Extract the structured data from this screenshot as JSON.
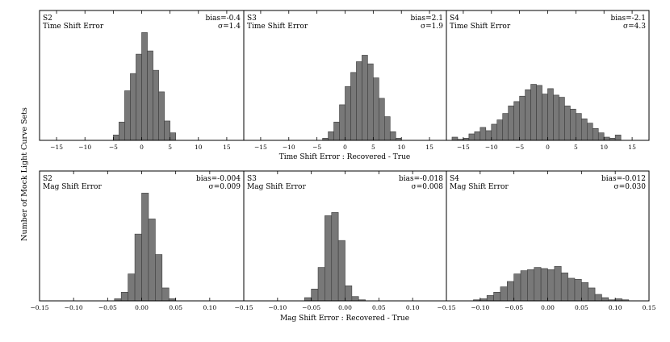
{
  "figure": {
    "ylabel": "Number of Mock Light Curve Sets",
    "row_xlabels": [
      "Time Shift Error : Recovered - True",
      "Mag Shift Error : Recovered - True"
    ]
  },
  "chart_data": [
    {
      "type": "bar",
      "row": 0,
      "col": 0,
      "sample": "S2",
      "quantity": "Time Shift Error",
      "bias": "bias=-0.4",
      "sigma": "σ=1.4",
      "xlim": [
        -18,
        18
      ],
      "xticks": [
        -15,
        -10,
        -5,
        0,
        5,
        10,
        15
      ],
      "xtick_labels": [
        "−15",
        "−10",
        "−5",
        "0",
        "5",
        "10",
        "15"
      ],
      "bin_width": 1,
      "bin_start": -5,
      "counts": [
        0.05,
        0.17,
        0.46,
        0.62,
        0.8,
        1.0,
        0.83,
        0.65,
        0.45,
        0.18,
        0.07
      ]
    },
    {
      "type": "bar",
      "row": 0,
      "col": 1,
      "sample": "S3",
      "quantity": "Time Shift Error",
      "bias": "bias=2.1",
      "sigma": "σ=1.9",
      "xlim": [
        -18,
        18
      ],
      "xticks": [
        -15,
        -10,
        -5,
        0,
        5,
        10,
        15
      ],
      "xtick_labels": [
        "−15",
        "−10",
        "−5",
        "0",
        "5",
        "10",
        "15"
      ],
      "bin_width": 1,
      "bin_start": -4,
      "counts": [
        0.02,
        0.08,
        0.17,
        0.33,
        0.5,
        0.63,
        0.73,
        0.79,
        0.71,
        0.58,
        0.39,
        0.22,
        0.08,
        0.02
      ]
    },
    {
      "type": "bar",
      "row": 0,
      "col": 2,
      "sample": "S4",
      "quantity": "Time Shift Error",
      "bias": "bias=-2.1",
      "sigma": "σ=4.3",
      "xlim": [
        -18,
        18
      ],
      "xticks": [
        -15,
        -10,
        -5,
        0,
        5,
        10,
        15
      ],
      "xtick_labels": [
        "−15",
        "−10",
        "−5",
        "0",
        "5",
        "10",
        "15"
      ],
      "bin_width": 1,
      "bin_start": -17,
      "counts": [
        0.03,
        0.01,
        0.02,
        0.06,
        0.08,
        0.12,
        0.09,
        0.15,
        0.19,
        0.25,
        0.32,
        0.36,
        0.41,
        0.47,
        0.52,
        0.51,
        0.43,
        0.48,
        0.42,
        0.4,
        0.32,
        0.29,
        0.25,
        0.2,
        0.16,
        0.11,
        0.07,
        0.03,
        0.02,
        0.05
      ]
    },
    {
      "type": "bar",
      "row": 1,
      "col": 0,
      "sample": "S2",
      "quantity": "Mag Shift Error",
      "bias": "bias=-0.004",
      "sigma": "σ=0.009",
      "xlim": [
        -0.15,
        0.15
      ],
      "xticks": [
        -0.15,
        -0.1,
        -0.05,
        0.0,
        0.05,
        0.1
      ],
      "xtick_labels": [
        "−0.15",
        "−0.10",
        "−0.05",
        "0.00",
        "0.05",
        "0.10"
      ],
      "bin_width": 0.01,
      "bin_start": -0.04,
      "counts": [
        0.02,
        0.08,
        0.25,
        0.62,
        1.0,
        0.76,
        0.43,
        0.12,
        0.02
      ]
    },
    {
      "type": "bar",
      "row": 1,
      "col": 1,
      "sample": "S3",
      "quantity": "Mag Shift Error",
      "bias": "bias=-0.018",
      "sigma": "σ=0.008",
      "xlim": [
        -0.15,
        0.15
      ],
      "xticks": [
        -0.15,
        -0.1,
        -0.05,
        0.0,
        0.05,
        0.1
      ],
      "xtick_labels": [
        "−0.15",
        "−0.10",
        "−0.05",
        "0.00",
        "0.05",
        "0.10"
      ],
      "bin_width": 0.01,
      "bin_start": -0.06,
      "counts": [
        0.03,
        0.11,
        0.31,
        0.79,
        0.82,
        0.56,
        0.14,
        0.04,
        0.01
      ]
    },
    {
      "type": "bar",
      "row": 1,
      "col": 2,
      "sample": "S4",
      "quantity": "Mag Shift Error",
      "bias": "bias=-0.012",
      "sigma": "σ=0.030",
      "xlim": [
        -0.15,
        0.15
      ],
      "xticks": [
        -0.15,
        -0.1,
        -0.05,
        0.0,
        0.05,
        0.1,
        0.15
      ],
      "xtick_labels": [
        "−0.15",
        "−0.10",
        "−0.05",
        "0.00",
        "0.05",
        "0.10",
        "0.15"
      ],
      "bin_width": 0.01,
      "bin_start": -0.11,
      "counts": [
        0.01,
        0.02,
        0.05,
        0.08,
        0.13,
        0.18,
        0.25,
        0.28,
        0.29,
        0.31,
        0.3,
        0.29,
        0.32,
        0.26,
        0.21,
        0.2,
        0.17,
        0.12,
        0.06,
        0.03,
        0.01,
        0.02,
        0.01
      ]
    }
  ],
  "colors": {
    "bar": "#787878",
    "bar_edge": "#3c3c3c",
    "axis": "#000000"
  }
}
